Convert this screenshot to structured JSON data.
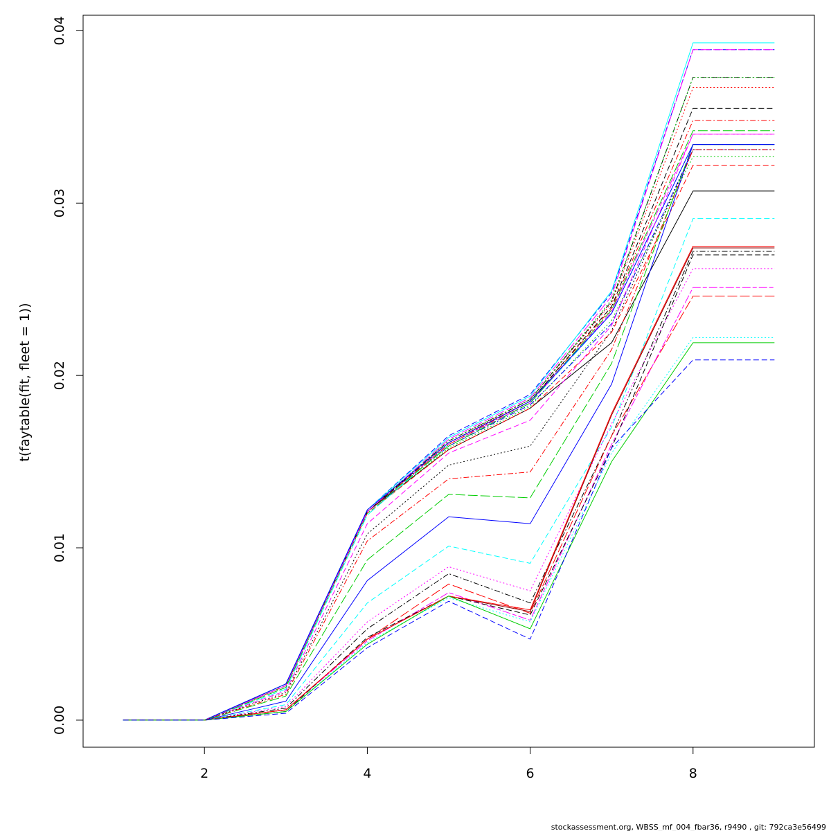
{
  "chart_data": {
    "type": "line",
    "ylabel": "t(faytable(fit, fleet = 1))",
    "x": [
      1,
      2,
      3,
      4,
      5,
      6,
      7,
      8,
      9
    ],
    "xlim": [
      0.51,
      9.49
    ],
    "ylim": [
      -0.00157,
      0.0409
    ],
    "x_ticks": [
      2,
      4,
      6,
      8
    ],
    "y_ticks": [
      0.0,
      0.01,
      0.02,
      0.03,
      0.04
    ],
    "x_tick_labels": [
      "2",
      "4",
      "6",
      "8"
    ],
    "y_tick_labels": [
      "0.00",
      "0.01",
      "0.02",
      "0.03",
      "0.04"
    ],
    "grid": false,
    "series": [
      {
        "color": "#000000",
        "dash": "solid",
        "values": [
          0,
          0,
          0.0021,
          0.0121,
          0.0157,
          0.0181,
          0.0219,
          0.0307,
          0.0307
        ]
      },
      {
        "color": "#ff0000",
        "dash": "dashed",
        "values": [
          0,
          0,
          0.002,
          0.012,
          0.0157,
          0.0181,
          0.0225,
          0.0322,
          0.0322
        ]
      },
      {
        "color": "#00cd00",
        "dash": "dotted",
        "values": [
          0,
          0,
          0.0019,
          0.012,
          0.0158,
          0.0182,
          0.0232,
          0.0327,
          0.0327
        ]
      },
      {
        "color": "#0000ff",
        "dash": "dotdash",
        "values": [
          0,
          0,
          0.002,
          0.0121,
          0.0159,
          0.0183,
          0.023,
          0.0331,
          0.0331
        ]
      },
      {
        "color": "#00ffff",
        "dash": "longdash",
        "values": [
          0,
          0,
          0.0018,
          0.0119,
          0.016,
          0.0184,
          0.0236,
          0.0334,
          0.0334
        ]
      },
      {
        "color": "#ff00ff",
        "dash": "twodash",
        "values": [
          0,
          0,
          0.002,
          0.0121,
          0.016,
          0.0184,
          0.0237,
          0.034,
          0.034
        ]
      },
      {
        "color": "#00cd00",
        "dash": "longdash",
        "values": [
          0,
          0,
          0.0019,
          0.0121,
          0.0159,
          0.0184,
          0.0238,
          0.0342,
          0.0342
        ]
      },
      {
        "color": "#ff0000",
        "dash": "dotdash",
        "values": [
          0,
          0,
          0.002,
          0.0121,
          0.016,
          0.0185,
          0.0239,
          0.0348,
          0.0348
        ]
      },
      {
        "color": "#000000",
        "dash": "dashed",
        "values": [
          0,
          0,
          0.0021,
          0.0121,
          0.0161,
          0.0185,
          0.024,
          0.0355,
          0.0355
        ]
      },
      {
        "color": "#ff0000",
        "dash": "dotted",
        "values": [
          0,
          0,
          0.002,
          0.0122,
          0.0161,
          0.0186,
          0.0242,
          0.0367,
          0.0367
        ]
      },
      {
        "color": "#000000",
        "dash": "dotdash",
        "values": [
          0,
          0,
          0.0021,
          0.0121,
          0.0162,
          0.0186,
          0.0243,
          0.0373,
          0.0373
        ]
      },
      {
        "color": "#00cd00",
        "dash": "dotted",
        "values": [
          0,
          0,
          0.002,
          0.0122,
          0.0162,
          0.0186,
          0.0244,
          0.0373,
          0.0373
        ]
      },
      {
        "color": "#0000ff",
        "dash": "dashed",
        "values": [
          0,
          0,
          0.0021,
          0.0122,
          0.0165,
          0.0189,
          0.0248,
          0.0389,
          0.0389
        ]
      },
      {
        "color": "#ff00ff",
        "dash": "longdash",
        "values": [
          0,
          0,
          0.002,
          0.0121,
          0.0163,
          0.0187,
          0.0246,
          0.0389,
          0.0389
        ]
      },
      {
        "color": "#00ffff",
        "dash": "solid",
        "values": [
          0,
          0,
          0.0021,
          0.0122,
          0.0164,
          0.0188,
          0.0249,
          0.0393,
          0.0393
        ]
      },
      {
        "color": "#0000ff",
        "dash": "solid",
        "values": [
          0,
          0,
          0.0021,
          0.0122,
          0.0161,
          0.0185,
          0.0236,
          0.0334,
          0.0334
        ]
      },
      {
        "color": "#ff00ff",
        "dash": "dashed",
        "values": [
          0,
          0,
          0.0017,
          0.0114,
          0.0155,
          0.0174,
          0.0229,
          0.034,
          0.034
        ]
      },
      {
        "color": "#000000",
        "dash": "dotted",
        "values": [
          0,
          0,
          0.0016,
          0.0108,
          0.0148,
          0.0159,
          0.0226,
          0.0331,
          0.0331
        ]
      },
      {
        "color": "#ff0000",
        "dash": "dotdash",
        "values": [
          0,
          0,
          0.0015,
          0.0104,
          0.014,
          0.0144,
          0.0215,
          0.0331,
          0.0331
        ]
      },
      {
        "color": "#00cd00",
        "dash": "longdash",
        "values": [
          0,
          0,
          0.0014,
          0.0093,
          0.0131,
          0.0129,
          0.0207,
          0.0334,
          0.0334
        ]
      },
      {
        "color": "#0000ff",
        "dash": "solid",
        "values": [
          0,
          0,
          0.0011,
          0.0081,
          0.0118,
          0.0114,
          0.0195,
          0.0334,
          0.0334
        ]
      },
      {
        "color": "#00ffff",
        "dash": "dashed",
        "values": [
          0,
          0,
          0.0009,
          0.0068,
          0.0101,
          0.0091,
          0.017,
          0.0291,
          0.0291
        ]
      },
      {
        "color": "#ff00ff",
        "dash": "dotted",
        "values": [
          0,
          0,
          0.0008,
          0.0057,
          0.0089,
          0.0075,
          0.0172,
          0.0262,
          0.0262
        ]
      },
      {
        "color": "#000000",
        "dash": "dotdash",
        "values": [
          0,
          0,
          0.0007,
          0.0053,
          0.0085,
          0.0068,
          0.0165,
          0.0272,
          0.0272
        ]
      },
      {
        "color": "#ff0000",
        "dash": "longdash",
        "values": [
          0,
          0,
          0.0006,
          0.0047,
          0.0079,
          0.0062,
          0.0165,
          0.0246,
          0.0246
        ]
      },
      {
        "color": "#ff00ff",
        "dash": "twodash",
        "values": [
          0,
          0,
          0.0006,
          0.0046,
          0.0074,
          0.0058,
          0.016,
          0.0251,
          0.0251
        ]
      },
      {
        "color": "#000000",
        "dash": "dashed",
        "values": [
          0,
          0,
          0.0005,
          0.0048,
          0.0072,
          0.0061,
          0.0158,
          0.027,
          0.027
        ]
      },
      {
        "color": "#8b0000",
        "dash": "solid",
        "values": [
          0,
          0,
          0.0006,
          0.0047,
          0.0072,
          0.0063,
          0.0177,
          0.0274,
          0.0274
        ]
      },
      {
        "color": "#ff0000",
        "dash": "solid",
        "values": [
          0,
          0,
          0.0006,
          0.0047,
          0.0072,
          0.0064,
          0.0178,
          0.0275,
          0.0275
        ]
      },
      {
        "color": "#00ffff",
        "dash": "dotted",
        "values": [
          0,
          0,
          0.0005,
          0.0045,
          0.0071,
          0.0057,
          0.0155,
          0.0222,
          0.0222
        ]
      },
      {
        "color": "#00cd00",
        "dash": "solid",
        "values": [
          0,
          0,
          0.0005,
          0.0044,
          0.0072,
          0.0053,
          0.015,
          0.0219,
          0.0219
        ]
      },
      {
        "color": "#0000ff",
        "dash": "dashed",
        "values": [
          0,
          0,
          0.0004,
          0.0042,
          0.0069,
          0.0047,
          0.0158,
          0.0209,
          0.0209
        ]
      }
    ]
  },
  "footer": {
    "text": "stockassessment.org, WBSS_mf_004_fbar36, r9490 , git: 792ca3e56499"
  }
}
